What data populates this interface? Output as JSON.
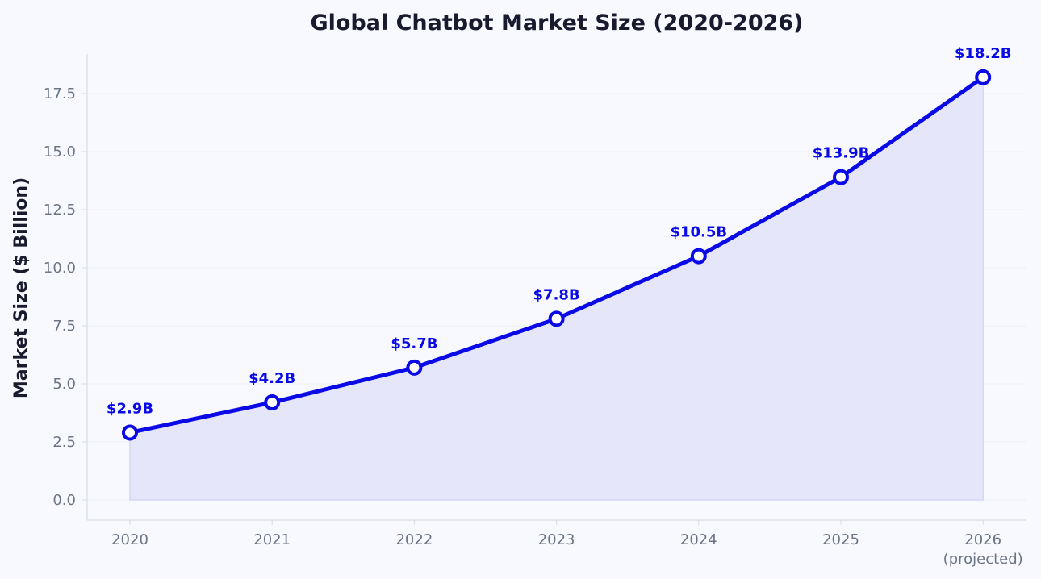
{
  "chart_data": {
    "type": "area",
    "title": "Global Chatbot Market Size (2020-2026)",
    "xlabel": "",
    "ylabel": "Market Size ($ Billion)",
    "categories": [
      "2020",
      "2021",
      "2022",
      "2023",
      "2024",
      "2025",
      "2026"
    ],
    "category_sublabels": [
      "",
      "",
      "",
      "",
      "",
      "",
      "(projected)"
    ],
    "series": [
      {
        "values": [
          2.9,
          4.2,
          5.7,
          7.8,
          10.5,
          13.9,
          18.2
        ],
        "labels": [
          "$2.9B",
          "$4.2B",
          "$5.7B",
          "$7.8B",
          "$10.5B",
          "$13.9B",
          "$18.2B"
        ]
      }
    ],
    "ylim": [
      -0.9,
      19.1
    ],
    "yticks": [
      0.0,
      2.5,
      5.0,
      7.5,
      10.0,
      12.5,
      15.0,
      17.5
    ],
    "ytick_labels": [
      "0.0",
      "2.5",
      "5.0",
      "7.5",
      "10.0",
      "12.5",
      "15.0",
      "17.5"
    ],
    "grid": true,
    "colors": {
      "line": "#0a0ae6",
      "fill": "#e6e6fa",
      "marker_fill": "#ffffff",
      "label": "#0a0ae6",
      "grid": "#eef0f6",
      "axis": "#d8dce8",
      "background": "#f8f9fe"
    }
  }
}
